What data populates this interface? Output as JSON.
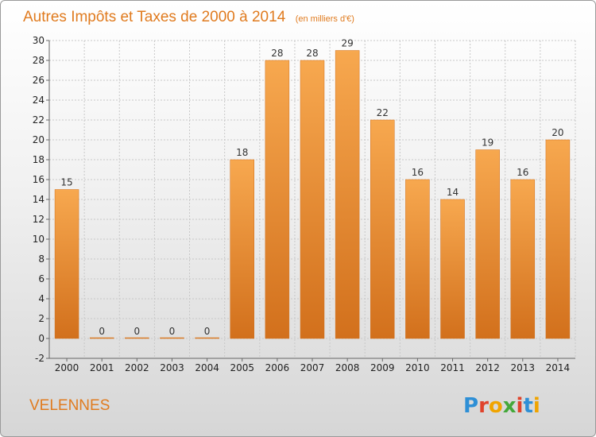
{
  "header": {
    "title": "Autres Impôts et Taxes de 2000 à 2014",
    "subtitle": "(en milliers d'€)"
  },
  "footer": {
    "commune": "VELENNES",
    "brand": "Proxiti"
  },
  "colors": {
    "bar_light": "#f7a84f",
    "bar_dark": "#d2701c",
    "title": "#e07b1f",
    "grid": "#c8c8c8"
  },
  "chart_data": {
    "type": "bar",
    "categories": [
      "2000",
      "2001",
      "2002",
      "2003",
      "2004",
      "2005",
      "2006",
      "2007",
      "2008",
      "2009",
      "2010",
      "2011",
      "2012",
      "2013",
      "2014"
    ],
    "values": [
      15,
      0,
      0,
      0,
      0,
      18,
      28,
      28,
      29,
      22,
      16,
      14,
      19,
      16,
      20
    ],
    "ylim": [
      -2,
      30
    ],
    "yticks": [
      -2,
      0,
      2,
      4,
      6,
      8,
      10,
      12,
      14,
      16,
      18,
      20,
      22,
      24,
      26,
      28,
      30
    ],
    "grid": true,
    "data_labels": true
  }
}
